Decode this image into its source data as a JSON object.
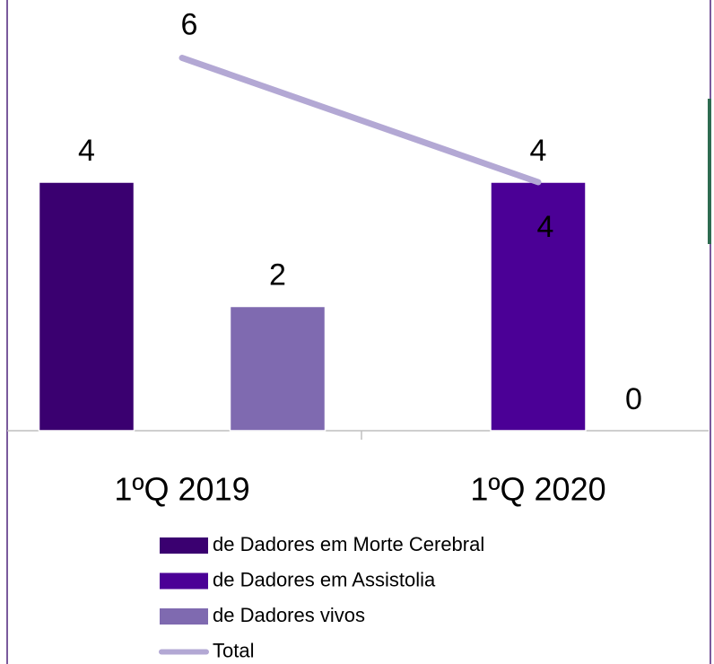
{
  "chart_data": {
    "type": "bar",
    "categories": [
      "1ºQ 2019",
      "1ºQ 2020"
    ],
    "series": [
      {
        "name": "de Dadores em Morte Cerebral",
        "color": "#3a0070",
        "values": [
          4,
          null
        ]
      },
      {
        "name": "de Dadores em Assistolia",
        "color": "#4b0096",
        "values": [
          null,
          4
        ]
      },
      {
        "name": "de Dadores vivos",
        "color": "#7f6ab0",
        "values": [
          2,
          0
        ]
      },
      {
        "name": "Total",
        "type": "line",
        "color": "#b3a8d4",
        "values": [
          6,
          4
        ]
      }
    ],
    "ylim": [
      0,
      7
    ]
  }
}
